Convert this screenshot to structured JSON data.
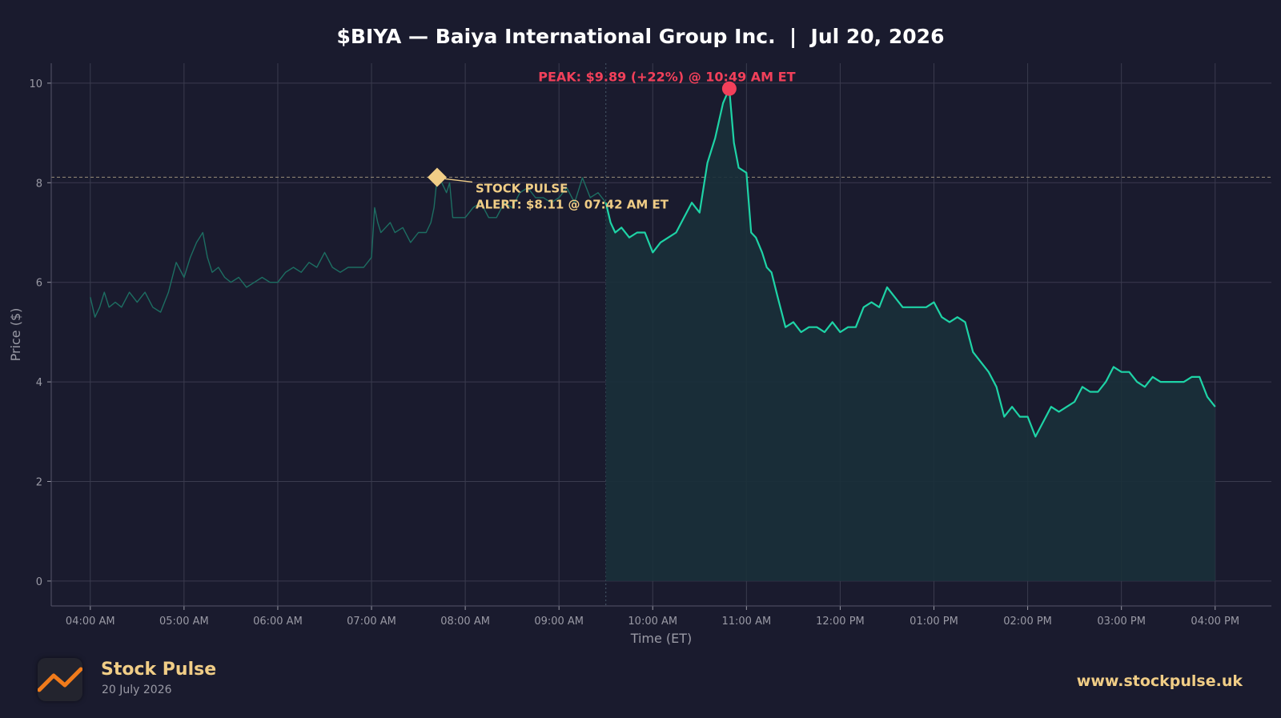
{
  "colors": {
    "background": "#1a1b2e",
    "plot_background": "#1a1b2e",
    "grid": "#3a3b4e",
    "line": "#1ed3a6",
    "premarket_line": "#1d6e62",
    "fill": "#19303a",
    "peak": "#f2405a",
    "alert": "#f0cd86",
    "text": "#ffffff",
    "axis_text": "#9a9aa5"
  },
  "footer": {
    "brand": "Stock Pulse",
    "date": "20 July 2026",
    "url": "www.stockpulse.uk",
    "logo_icon": "line-chart-icon"
  },
  "chart_data": {
    "type": "line",
    "title": "$BIYA — Baiya International Group Inc.  |  Jul 20, 2026",
    "xlabel": "Time (ET)",
    "ylabel": "Price ($)",
    "xlim": [
      "03:35 AM",
      "04:36 PM"
    ],
    "ylim": [
      -0.5,
      10.4
    ],
    "x_ticks": [
      "04:00 AM",
      "05:00 AM",
      "06:00 AM",
      "07:00 AM",
      "08:00 AM",
      "09:00 AM",
      "10:00 AM",
      "11:00 AM",
      "12:00 PM",
      "01:00 PM",
      "02:00 PM",
      "03:00 PM",
      "04:00 PM"
    ],
    "y_ticks": [
      0,
      2,
      4,
      6,
      8,
      10
    ],
    "grid": true,
    "market_open": "09:30 AM",
    "alert_level": 8.11,
    "series": [
      {
        "segment": "premarket",
        "x": [
          "04:00 AM",
          "04:03 AM",
          "04:06 AM",
          "04:09 AM",
          "04:12 AM",
          "04:16 AM",
          "04:20 AM",
          "04:25 AM",
          "04:30 AM",
          "04:35 AM",
          "04:40 AM",
          "04:45 AM",
          "04:50 AM",
          "04:55 AM",
          "05:00 AM",
          "05:04 AM",
          "05:08 AM",
          "05:12 AM",
          "05:15 AM",
          "05:18 AM",
          "05:22 AM",
          "05:26 AM",
          "05:30 AM",
          "05:35 AM",
          "05:40 AM",
          "05:45 AM",
          "05:50 AM",
          "05:55 AM",
          "06:00 AM",
          "06:05 AM",
          "06:10 AM",
          "06:15 AM",
          "06:20 AM",
          "06:25 AM",
          "06:30 AM",
          "06:35 AM",
          "06:40 AM",
          "06:45 AM",
          "06:50 AM",
          "06:55 AM",
          "07:00 AM",
          "07:02 AM",
          "07:04 AM",
          "07:06 AM",
          "07:09 AM",
          "07:12 AM",
          "07:15 AM",
          "07:20 AM",
          "07:25 AM",
          "07:30 AM",
          "07:35 AM",
          "07:38 AM",
          "07:40 AM",
          "07:42 AM",
          "07:45 AM",
          "07:48 AM",
          "07:50 AM",
          "07:52 AM",
          "07:55 AM",
          "08:00 AM",
          "08:05 AM",
          "08:10 AM",
          "08:15 AM",
          "08:20 AM",
          "08:25 AM",
          "08:30 AM",
          "08:35 AM",
          "08:40 AM",
          "08:45 AM",
          "08:50 AM",
          "08:55 AM",
          "09:00 AM",
          "09:05 AM",
          "09:10 AM",
          "09:15 AM",
          "09:20 AM",
          "09:25 AM",
          "09:30 AM"
        ],
        "values": [
          5.7,
          5.3,
          5.5,
          5.8,
          5.5,
          5.6,
          5.5,
          5.8,
          5.6,
          5.8,
          5.5,
          5.4,
          5.8,
          6.4,
          6.1,
          6.5,
          6.8,
          7.0,
          6.5,
          6.2,
          6.3,
          6.1,
          6.0,
          6.1,
          5.9,
          6.0,
          6.1,
          6.0,
          6.0,
          6.2,
          6.3,
          6.2,
          6.4,
          6.3,
          6.6,
          6.3,
          6.2,
          6.3,
          6.3,
          6.3,
          6.5,
          7.5,
          7.2,
          7.0,
          7.1,
          7.2,
          7.0,
          7.1,
          6.8,
          7.0,
          7.0,
          7.2,
          7.5,
          8.11,
          8.0,
          7.8,
          8.0,
          7.3,
          7.3,
          7.3,
          7.5,
          7.6,
          7.3,
          7.3,
          7.6,
          7.5,
          7.8,
          7.9,
          7.7,
          7.7,
          7.6,
          7.7,
          7.9,
          7.6,
          8.1,
          7.7,
          7.8,
          7.6
        ]
      },
      {
        "segment": "regular",
        "x": [
          "09:30 AM",
          "09:33 AM",
          "09:36 AM",
          "09:40 AM",
          "09:45 AM",
          "09:50 AM",
          "09:55 AM",
          "10:00 AM",
          "10:05 AM",
          "10:10 AM",
          "10:15 AM",
          "10:20 AM",
          "10:25 AM",
          "10:30 AM",
          "10:35 AM",
          "10:40 AM",
          "10:45 AM",
          "10:49 AM",
          "10:52 AM",
          "10:55 AM",
          "11:00 AM",
          "11:03 AM",
          "11:06 AM",
          "11:10 AM",
          "11:13 AM",
          "11:16 AM",
          "11:20 AM",
          "11:25 AM",
          "11:30 AM",
          "11:35 AM",
          "11:40 AM",
          "11:45 AM",
          "11:50 AM",
          "11:55 AM",
          "12:00 PM",
          "12:05 PM",
          "12:10 PM",
          "12:15 PM",
          "12:20 PM",
          "12:25 PM",
          "12:30 PM",
          "12:35 PM",
          "12:40 PM",
          "12:45 PM",
          "12:50 PM",
          "12:55 PM",
          "01:00 PM",
          "01:05 PM",
          "01:10 PM",
          "01:15 PM",
          "01:20 PM",
          "01:25 PM",
          "01:30 PM",
          "01:35 PM",
          "01:40 PM",
          "01:45 PM",
          "01:50 PM",
          "01:55 PM",
          "02:00 PM",
          "02:05 PM",
          "02:10 PM",
          "02:15 PM",
          "02:20 PM",
          "02:25 PM",
          "02:30 PM",
          "02:35 PM",
          "02:40 PM",
          "02:45 PM",
          "02:50 PM",
          "02:55 PM",
          "03:00 PM",
          "03:05 PM",
          "03:10 PM",
          "03:15 PM",
          "03:20 PM",
          "03:25 PM",
          "03:30 PM",
          "03:35 PM",
          "03:40 PM",
          "03:45 PM",
          "03:50 PM",
          "03:55 PM",
          "04:00 PM"
        ],
        "values": [
          7.6,
          7.2,
          7.0,
          7.1,
          6.9,
          7.0,
          7.0,
          6.6,
          6.8,
          6.9,
          7.0,
          7.3,
          7.6,
          7.4,
          8.4,
          8.9,
          9.6,
          9.89,
          8.8,
          8.3,
          8.2,
          7.0,
          6.9,
          6.6,
          6.3,
          6.2,
          5.7,
          5.1,
          5.2,
          5.0,
          5.1,
          5.1,
          5.0,
          5.2,
          5.0,
          5.1,
          5.1,
          5.5,
          5.6,
          5.5,
          5.9,
          5.7,
          5.5,
          5.5,
          5.5,
          5.5,
          5.6,
          5.3,
          5.2,
          5.3,
          5.2,
          4.6,
          4.4,
          4.2,
          3.9,
          3.3,
          3.5,
          3.3,
          3.3,
          2.9,
          3.2,
          3.5,
          3.4,
          3.5,
          3.6,
          3.9,
          3.8,
          3.8,
          4.0,
          4.3,
          4.2,
          4.2,
          4.0,
          3.9,
          4.1,
          4.0,
          4.0,
          4.0,
          4.0,
          4.1,
          4.1,
          3.7,
          3.5
        ]
      }
    ],
    "annotations": [
      {
        "type": "peak",
        "x": "10:49 AM",
        "y": 9.89,
        "text": "PEAK: $9.89 (+22%) @ 10:49 AM ET"
      },
      {
        "type": "alert",
        "x": "07:42 AM",
        "y": 8.11,
        "text_line1": "STOCK PULSE",
        "text_line2": "ALERT: $8.11 @ 07:42 AM ET"
      }
    ]
  }
}
